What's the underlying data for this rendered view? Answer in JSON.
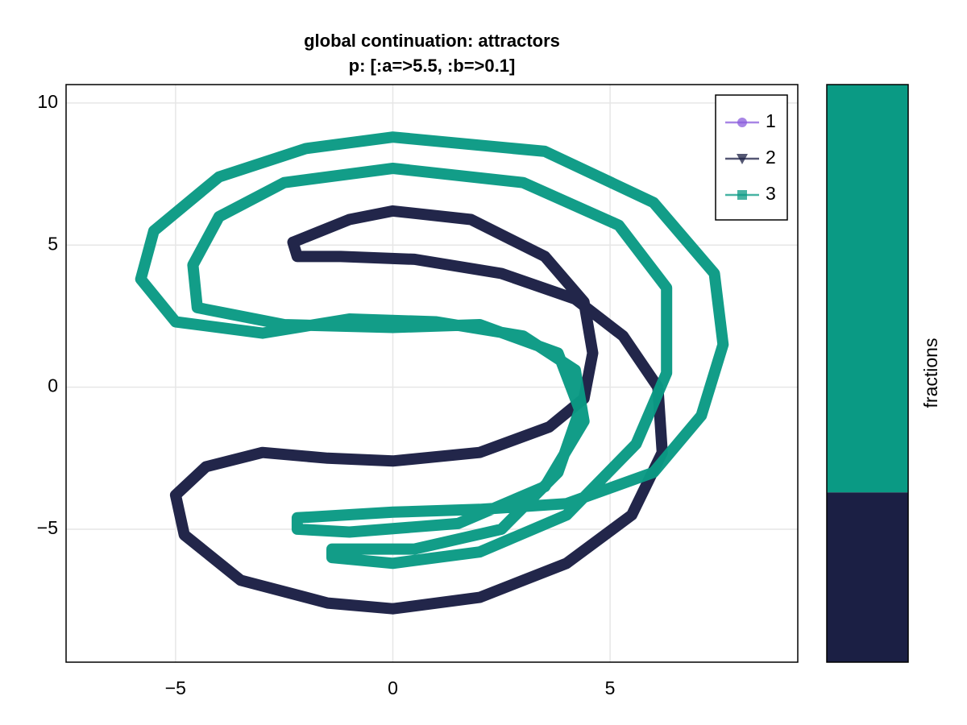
{
  "chart_data": [
    {
      "type": "line",
      "title": "global continuation: attractors",
      "subtitle": "p: [:a=>5.5, :b=>0.1]",
      "xlim": [
        -7.52,
        9.32
      ],
      "ylim": [
        -9.68,
        10.65
      ],
      "xticks": [
        {
          "value": -5,
          "label": "−5"
        },
        0,
        5
      ],
      "yticks": [
        {
          "value": -5,
          "label": "−5"
        },
        0,
        5,
        10
      ],
      "grid": true,
      "legend": "top-right",
      "series": [
        {
          "name": "1",
          "color": "#8b5cdc",
          "marker": "circle",
          "x": [],
          "values": []
        },
        {
          "name": "2",
          "color": "#1b1f44",
          "marker": "triangle-down",
          "x": [
            -2.3,
            -1,
            0,
            1.8,
            3.5,
            4.4,
            4.6,
            4.4,
            3.6,
            2,
            0,
            -1.5,
            -3,
            -4.3,
            -5,
            -4.8,
            -3.5,
            -1.5,
            0,
            2,
            4,
            5.5,
            6.2,
            6.1,
            5.3,
            4.2,
            2.5,
            0.5,
            -1.2,
            -2.2,
            -2.3
          ],
          "values": [
            5.1,
            5.9,
            6.2,
            5.9,
            4.6,
            3,
            1.2,
            -0.4,
            -1.4,
            -2.3,
            -2.6,
            -2.5,
            -2.3,
            -2.8,
            -3.8,
            -5.2,
            -6.8,
            -7.6,
            -7.8,
            -7.4,
            -6.2,
            -4.5,
            -2.3,
            0,
            1.8,
            3.1,
            4,
            4.5,
            4.6,
            4.6,
            5.1
          ]
        },
        {
          "name": "3",
          "color": "#0a9a84",
          "marker": "square",
          "x": [
            0,
            3.5,
            6,
            7.4,
            7.6,
            7.1,
            6,
            4,
            2,
            0,
            -2.2,
            -2.2,
            -1,
            1.5,
            3.5,
            4.4,
            4.2,
            3,
            1,
            -1,
            -3,
            -5,
            -5.8,
            -5.5,
            -4,
            -2,
            0,
            null,
            0,
            3,
            5.2,
            6.3,
            6.3,
            5.6,
            4,
            2,
            0,
            -1.4,
            -1.4,
            0.5,
            2.5,
            3.8,
            4.3,
            3.8,
            2,
            0,
            -2.5,
            -4.5,
            -4.6,
            -4,
            -2.5,
            0
          ],
          "values": [
            8.8,
            8.3,
            6.5,
            4,
            1.5,
            -1,
            -3,
            -4.1,
            -4.3,
            -4.4,
            -4.6,
            -5,
            -5.1,
            -4.8,
            -3.5,
            -1.2,
            0.6,
            1.8,
            2.3,
            2.4,
            1.9,
            2.3,
            3.8,
            5.5,
            7.4,
            8.4,
            8.8,
            null,
            7.7,
            7.2,
            5.7,
            3.5,
            0.5,
            -2,
            -4.5,
            -5.8,
            -6.2,
            -6,
            -5.7,
            -5.7,
            -5,
            -3,
            -0.8,
            1.2,
            2.2,
            2.1,
            2.2,
            2.8,
            4.3,
            6,
            7.2,
            7.7
          ]
        }
      ]
    },
    {
      "type": "bar",
      "ylabel": "fractions",
      "ylim": [
        0,
        1
      ],
      "series": [
        {
          "color": "#1b1f44",
          "values": [
            0.294
          ]
        },
        {
          "color": "#0a9a84",
          "values": [
            0.706
          ]
        }
      ]
    }
  ]
}
